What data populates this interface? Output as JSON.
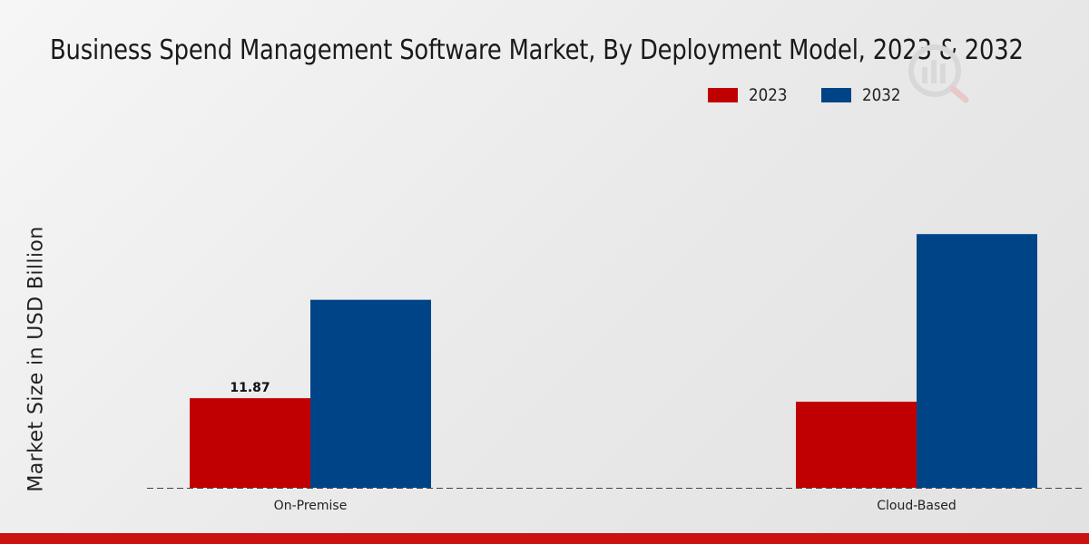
{
  "title": "Business Spend Management Software Market, By Deployment Model, 2023 & 2032",
  "y_axis_label": "Market Size in USD Billion",
  "colors": {
    "series_2023": "#c00000",
    "series_2032": "#004488",
    "footer": "#cc1111"
  },
  "chart_data": {
    "type": "bar",
    "title": "Business Spend Management Software Market, By Deployment Model, 2023 & 2032",
    "xlabel": "",
    "ylabel": "Market Size in USD Billion",
    "categories": [
      "On-Premise",
      "Cloud-Based"
    ],
    "series": [
      {
        "name": "2023",
        "color": "#c00000",
        "values": [
          11.87,
          11.4
        ],
        "data_labels": [
          "11.87",
          null
        ]
      },
      {
        "name": "2032",
        "color": "#004488",
        "values": [
          24.9,
          33.6
        ],
        "data_labels": [
          null,
          null
        ]
      }
    ],
    "ylim": [
      0,
      55
    ],
    "grid": false,
    "legend": "top-center"
  }
}
